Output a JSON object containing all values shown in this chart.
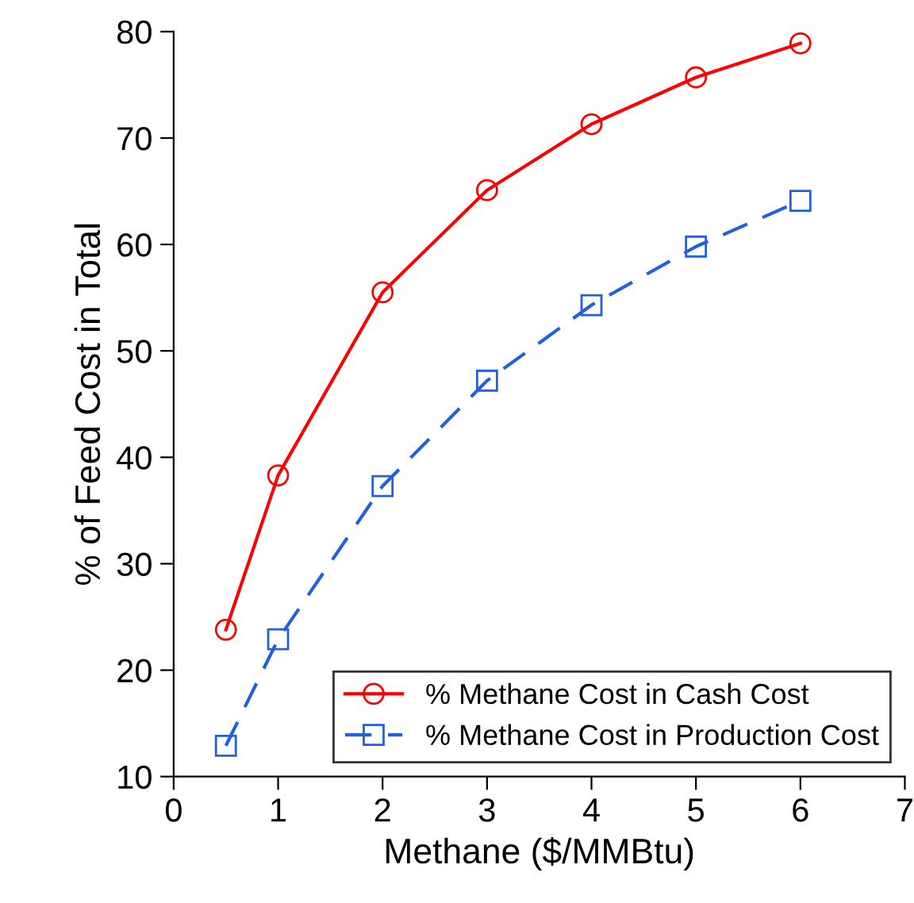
{
  "chart_data": {
    "type": "line",
    "xlabel": "Methane ($/MMBtu)",
    "ylabel": "% of Feed Cost in Total",
    "x": [
      0.5,
      1,
      2,
      3,
      4,
      5,
      6
    ],
    "series": [
      {
        "name": "% Methane Cost in Cash Cost",
        "color": "#ff0000",
        "values": [
          23.8,
          38.3,
          55.5,
          65.1,
          71.3,
          75.7,
          78.9
        ],
        "marker": "circle",
        "line_style": "solid"
      },
      {
        "name": "% Methane Cost in Production Cost",
        "color": "#1f5fe0",
        "values": [
          12.9,
          22.9,
          37.3,
          47.2,
          54.3,
          59.8,
          64.1
        ],
        "marker": "square",
        "line_style": "dashed"
      }
    ],
    "xlim": [
      0,
      7
    ],
    "xticks": [
      0,
      1,
      2,
      3,
      4,
      5,
      6,
      7
    ],
    "ylim": [
      10,
      80
    ],
    "yticks": [
      10,
      20,
      30,
      40,
      50,
      60,
      70,
      80
    ],
    "grid": false,
    "legend": "bottom right"
  }
}
